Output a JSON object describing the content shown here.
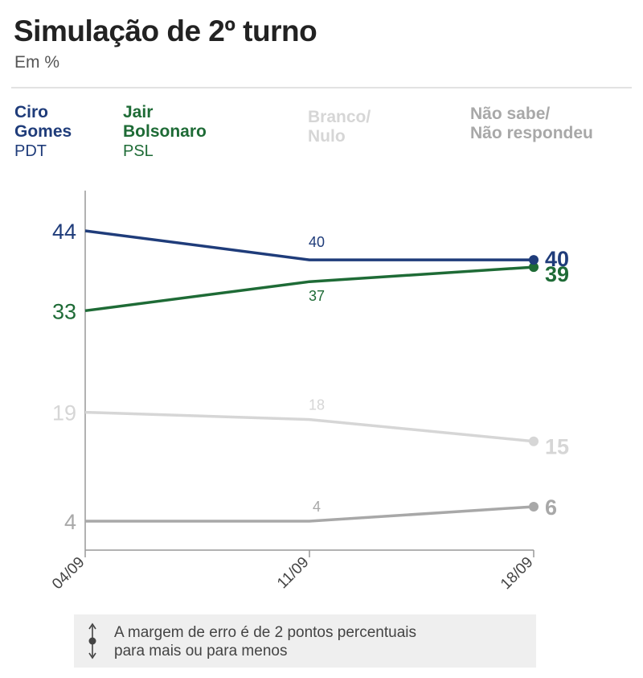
{
  "header": {
    "title": "Simulação de 2º turno",
    "subtitle": "Em %"
  },
  "legend": [
    {
      "name_line1": "Ciro",
      "name_line2": "Gomes",
      "party": "PDT",
      "color": "#1f3c7a"
    },
    {
      "name_line1": "Jair",
      "name_line2": "Bolsonaro",
      "party": "PSL",
      "color": "#1e6b36"
    },
    {
      "name_line1": "Branco/",
      "name_line2": "Nulo",
      "party": "",
      "color": "#d6d6d6"
    },
    {
      "name_line1": "Não sabe/",
      "name_line2": "Não respondeu",
      "party": "",
      "color": "#a8a8a8"
    }
  ],
  "chart_data": {
    "type": "line",
    "x": [
      "04/09",
      "11/09",
      "18/09"
    ],
    "series": [
      {
        "name": "Ciro Gomes",
        "values": [
          44,
          40,
          40
        ],
        "color": "#1f3c7a"
      },
      {
        "name": "Jair Bolsonaro",
        "values": [
          33,
          37,
          39
        ],
        "color": "#1e6b36"
      },
      {
        "name": "Branco/Nulo",
        "values": [
          19,
          18,
          15
        ],
        "color": "#d6d6d6"
      },
      {
        "name": "Não sabe/Não respondeu",
        "values": [
          4,
          4,
          6
        ],
        "color": "#a8a8a8"
      }
    ],
    "grid": false,
    "legend_position": "top"
  },
  "note": {
    "line1": "A margem de erro é de 2 pontos percentuais",
    "line2": "para mais ou para menos"
  }
}
